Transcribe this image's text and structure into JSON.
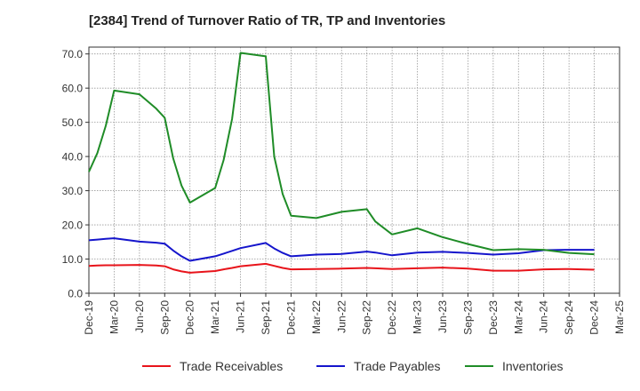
{
  "title": "[2384]  Trend of Turnover Ratio of TR, TP and Inventories",
  "chart_data": {
    "type": "line",
    "title": "[2384]  Trend of Turnover Ratio of TR, TP and Inventories",
    "xlabel": "",
    "ylabel": "",
    "x_tick_labels": [
      "Dec-19",
      "Mar-20",
      "Jun-20",
      "Sep-20",
      "Dec-20",
      "Mar-21",
      "Jun-21",
      "Sep-21",
      "Dec-21",
      "Mar-22",
      "Jun-22",
      "Sep-22",
      "Dec-22",
      "Mar-23",
      "Jun-23",
      "Sep-23",
      "Dec-23",
      "Mar-24",
      "Jun-24",
      "Sep-24",
      "Dec-24",
      "Mar-25"
    ],
    "y_tick_labels": [
      "0.0",
      "10.0",
      "20.0",
      "30.0",
      "40.0",
      "50.0",
      "60.0",
      "70.0"
    ],
    "ylim": [
      0,
      72
    ],
    "grid": true,
    "legend_position": "bottom",
    "x": [
      "Dec-19",
      "Jan-20",
      "Feb-20",
      "Mar-20",
      "Jun-20",
      "Aug-20",
      "Sep-20",
      "Oct-20",
      "Nov-20",
      "Dec-20",
      "Mar-21",
      "Apr-21",
      "May-21",
      "Jun-21",
      "Sep-21",
      "Oct-21",
      "Nov-21",
      "Dec-21",
      "Mar-22",
      "Jun-22",
      "Sep-22",
      "Oct-22",
      "Dec-22",
      "Mar-23",
      "Jun-23",
      "Sep-23",
      "Dec-23",
      "Mar-24",
      "Jun-24",
      "Sep-24",
      "Dec-24"
    ],
    "series": [
      {
        "name": "Trade Receivables",
        "color": "#e8141b",
        "values": [
          8.0,
          8.1,
          8.2,
          8.2,
          8.3,
          8.1,
          7.9,
          7.0,
          6.4,
          6.0,
          6.5,
          7.0,
          7.4,
          7.9,
          8.6,
          8.0,
          7.4,
          7.0,
          7.1,
          7.2,
          7.4,
          7.3,
          7.1,
          7.3,
          7.5,
          7.2,
          6.6,
          6.6,
          7.0,
          7.1,
          6.9
        ]
      },
      {
        "name": "Trade Payables",
        "color": "#1515cc",
        "values": [
          15.5,
          15.7,
          15.9,
          16.1,
          15.1,
          14.8,
          14.5,
          12.5,
          10.8,
          9.5,
          10.8,
          11.6,
          12.4,
          13.2,
          14.7,
          13.1,
          11.8,
          10.8,
          11.3,
          11.5,
          12.2,
          11.9,
          11.1,
          11.9,
          12.1,
          11.8,
          11.3,
          11.7,
          12.6,
          12.7,
          12.7
        ]
      },
      {
        "name": "Inventories",
        "color": "#1f8c27",
        "values": [
          35.5,
          41.0,
          49.0,
          59.3,
          58.2,
          54.0,
          51.3,
          39.5,
          31.5,
          26.5,
          30.8,
          39.0,
          51.0,
          70.3,
          69.3,
          40.0,
          29.0,
          22.7,
          22.0,
          23.8,
          24.6,
          21.0,
          17.2,
          19.0,
          16.4,
          14.4,
          12.6,
          12.9,
          12.7,
          11.8,
          11.4
        ]
      }
    ]
  }
}
